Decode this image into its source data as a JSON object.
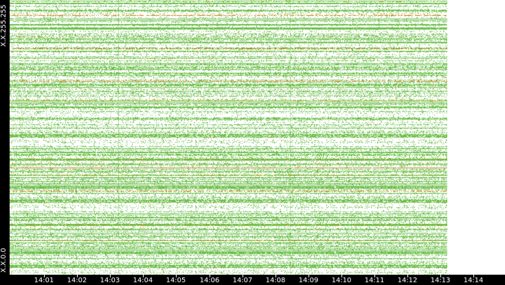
{
  "y_axis": {
    "top_label": "X.X.255.255",
    "bottom_label": "X.X.0.0"
  },
  "x_axis": {
    "ticks": [
      "14:01",
      "14:02",
      "14:03",
      "14:04",
      "14:05",
      "14:06",
      "14:07",
      "14:08",
      "14:09",
      "14:10",
      "14:11",
      "14:12",
      "14:13",
      "14:14"
    ]
  },
  "colors": {
    "background": "#ffffff",
    "frame": "#000000",
    "low_activity": "#6cbf4a",
    "medium_activity": "#c8b400",
    "high_activity": "#e06a00",
    "peak_activity": "#d03000"
  }
}
